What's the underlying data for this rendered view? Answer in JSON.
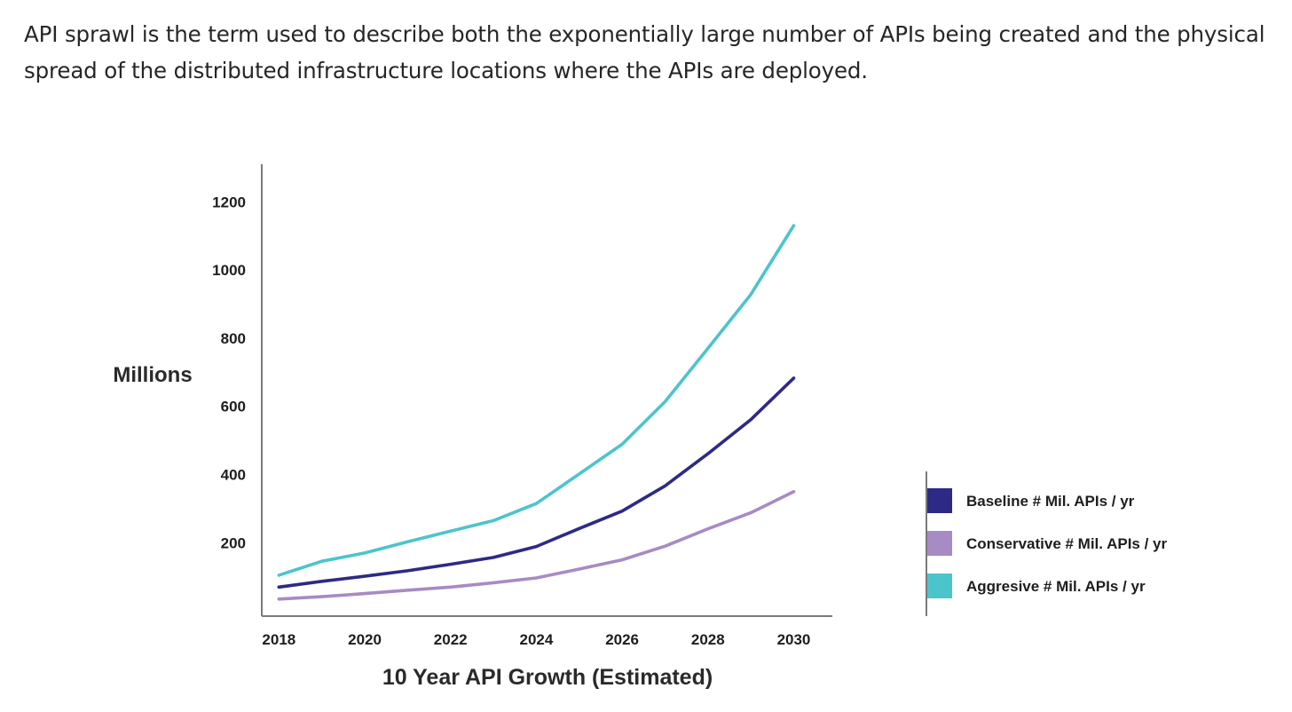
{
  "intro": {
    "text": "API sprawl is the term used to describe both the exponentially large number of APIs being created and the physical spread of the distributed infrastructure locations where the APIs are deployed."
  },
  "colors": {
    "baseline": "#2d2a86",
    "conservative": "#a88ac4",
    "aggressive": "#4cc4cc",
    "axis": "#7a7a7a"
  },
  "chart_data": {
    "type": "line",
    "title": "10 Year API Growth (Estimated)",
    "xlabel": "10 Year API Growth (Estimated)",
    "ylabel": "Millions",
    "xlim": [
      2017.6,
      2030.9
    ],
    "ylim": [
      -15,
      1310
    ],
    "x_ticks": [
      2018,
      2020,
      2022,
      2024,
      2026,
      2028,
      2030
    ],
    "y_ticks": [
      200,
      400,
      600,
      800,
      1000,
      1200
    ],
    "x": [
      2018,
      2019,
      2020,
      2021,
      2022,
      2023,
      2024,
      2025,
      2026,
      2027,
      2028,
      2029,
      2030
    ],
    "legend_position": "right",
    "series": [
      {
        "name": "Baseline # Mil. APIs / yr",
        "color_key": "baseline",
        "values": [
          70,
          87,
          102,
          118,
          137,
          157,
          189,
          242,
          293,
          367,
          461,
          561,
          683
        ]
      },
      {
        "name": "Conservative # Mil. APIs / yr",
        "color_key": "conservative",
        "values": [
          35,
          42,
          51,
          61,
          70,
          83,
          97,
          123,
          150,
          190,
          241,
          288,
          350
        ]
      },
      {
        "name": "Aggresive # Mil. APIs / yr",
        "color_key": "aggressive",
        "values": [
          105,
          146,
          170,
          203,
          234,
          265,
          315,
          402,
          489,
          614,
          770,
          928,
          1130
        ]
      }
    ]
  }
}
